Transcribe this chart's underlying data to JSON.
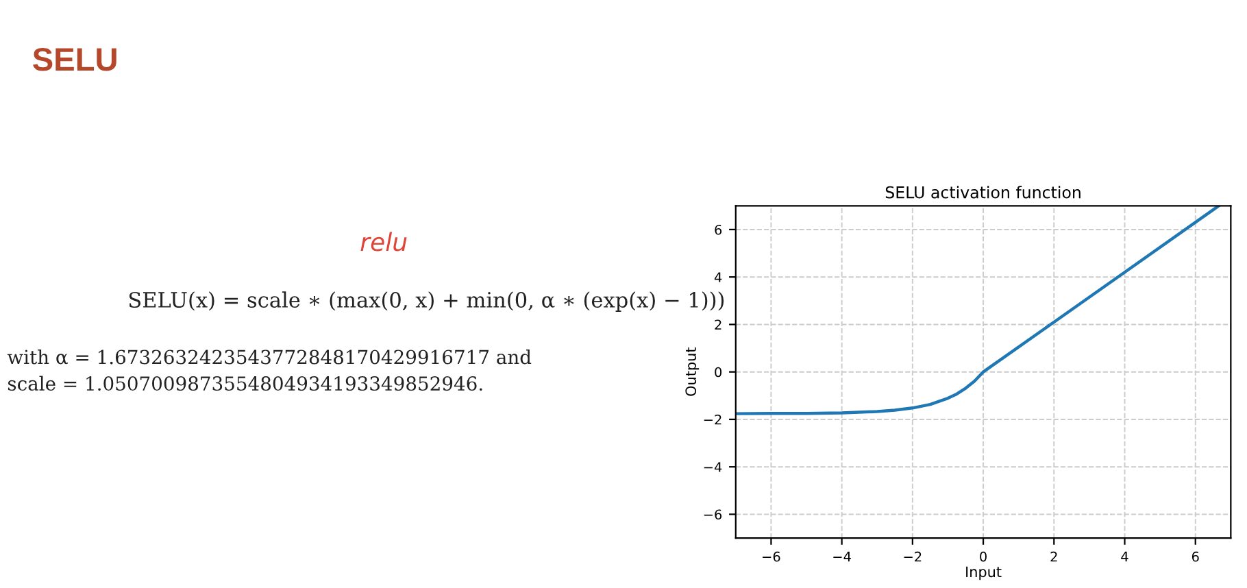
{
  "chart_data": [
    {
      "type": "other",
      "title": "SELU",
      "annotations": [
        "SELU(x) = scale ∗ (max(0, x) + min(0, α ∗ (exp(x) − 1)))",
        "relu",
        "with α = 1.6732632423543772848170429916717 and",
        "scale = 1.0507009873554804934193349852946."
      ]
    },
    {
      "type": "line",
      "title": "SELU activation function",
      "xlabel": "Input",
      "ylabel": "Output",
      "x": [
        -7,
        -6,
        -5,
        -4,
        -3,
        -2.5,
        -2,
        -1.5,
        -1,
        -0.75,
        -0.5,
        -0.25,
        0,
        2,
        4,
        6.66
      ],
      "series": [
        {
          "color": "#1f77b4",
          "values": [
            -1.76,
            -1.75,
            -1.75,
            -1.73,
            -1.67,
            -1.61,
            -1.52,
            -1.37,
            -1.11,
            -0.93,
            -0.69,
            -0.39,
            0,
            2.1,
            4.2,
            7.0
          ]
        }
      ],
      "xlim": [
        -7,
        7
      ],
      "ylim": [
        -7,
        7
      ],
      "xticks": [
        -6,
        -4,
        -2,
        0,
        2,
        4,
        6
      ],
      "yticks": [
        -6,
        -4,
        -2,
        0,
        2,
        4,
        6
      ],
      "grid": true,
      "line_style": "solid",
      "marker": "none"
    }
  ]
}
